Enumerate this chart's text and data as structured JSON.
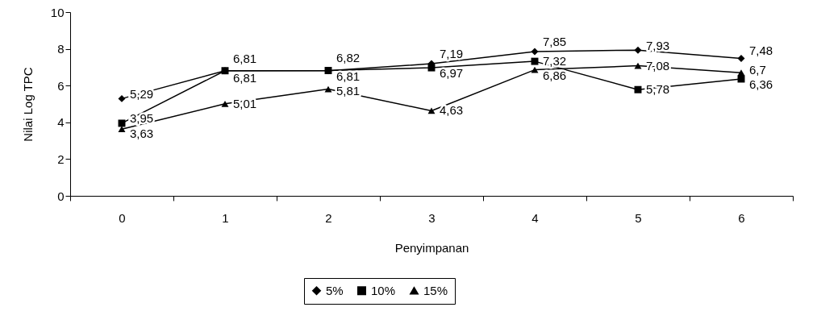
{
  "chart_data": {
    "type": "line",
    "xlabel": "Penyimpanan",
    "ylabel": "Nilai Log TPC",
    "categories": [
      "0",
      "1",
      "2",
      "3",
      "4",
      "5",
      "6"
    ],
    "series": [
      {
        "name": "5%",
        "color": "#000000",
        "marker": "diamond",
        "values": [
          5.29,
          6.81,
          6.81,
          7.19,
          7.85,
          7.93,
          7.48
        ],
        "value_labels": [
          "5,29",
          "6,81",
          "6,81",
          "7,19",
          "7,85",
          "7,93",
          "7,48"
        ]
      },
      {
        "name": "10%",
        "color": "#000000",
        "marker": "square",
        "values": [
          3.95,
          6.81,
          6.82,
          6.97,
          7.32,
          5.78,
          6.36
        ],
        "value_labels": [
          "3,95",
          "6,81",
          "6,82",
          "6,97",
          "7,32",
          "5,78",
          "6,36"
        ]
      },
      {
        "name": "15%",
        "color": "#000000",
        "marker": "triangle",
        "values": [
          3.63,
          5.01,
          5.81,
          4.63,
          6.86,
          7.08,
          6.7
        ],
        "value_labels": [
          "3,63",
          "5,01",
          "5,81",
          "4,63",
          "6,86",
          "7,08",
          "6,7"
        ]
      }
    ],
    "ylim": [
      0,
      10
    ],
    "yticks": [
      0,
      2,
      4,
      6,
      8,
      10
    ],
    "grid": false,
    "legend": "bottom",
    "line_style": "solid"
  }
}
